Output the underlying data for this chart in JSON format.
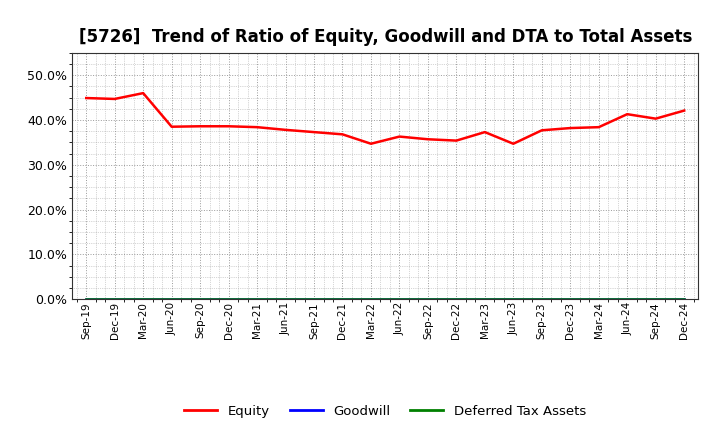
{
  "title": "[5726]  Trend of Ratio of Equity, Goodwill and DTA to Total Assets",
  "x_labels": [
    "Sep-19",
    "Dec-19",
    "Mar-20",
    "Jun-20",
    "Sep-20",
    "Dec-20",
    "Mar-21",
    "Jun-21",
    "Sep-21",
    "Dec-21",
    "Mar-22",
    "Jun-22",
    "Sep-22",
    "Dec-22",
    "Mar-23",
    "Jun-23",
    "Sep-23",
    "Dec-23",
    "Mar-24",
    "Jun-24",
    "Sep-24",
    "Dec-24"
  ],
  "equity": [
    0.449,
    0.447,
    0.46,
    0.385,
    0.386,
    0.386,
    0.384,
    0.378,
    0.373,
    0.368,
    0.347,
    0.363,
    0.357,
    0.354,
    0.373,
    0.347,
    0.377,
    0.382,
    0.384,
    0.413,
    0.403,
    0.421
  ],
  "goodwill": [
    0.0,
    0.0,
    0.0,
    0.0,
    0.0,
    0.0,
    0.0,
    0.0,
    0.0,
    0.0,
    0.0,
    0.0,
    0.0,
    0.0,
    0.0,
    0.0,
    0.0,
    0.0,
    0.0,
    0.0,
    0.0,
    0.0
  ],
  "dta": [
    0.0,
    0.0,
    0.0,
    0.0,
    0.0,
    0.0,
    0.0,
    0.0,
    0.0,
    0.0,
    0.0,
    0.0,
    0.0,
    0.0,
    0.0,
    0.0,
    0.0,
    0.0,
    0.0,
    0.0,
    0.0,
    0.0
  ],
  "equity_color": "#ff0000",
  "goodwill_color": "#0000ff",
  "dta_color": "#008000",
  "ylim": [
    0.0,
    0.55
  ],
  "yticks": [
    0.0,
    0.1,
    0.2,
    0.3,
    0.4,
    0.5
  ],
  "background_color": "#ffffff",
  "grid_color": "#999999",
  "title_fontsize": 12,
  "legend_labels": [
    "Equity",
    "Goodwill",
    "Deferred Tax Assets"
  ]
}
